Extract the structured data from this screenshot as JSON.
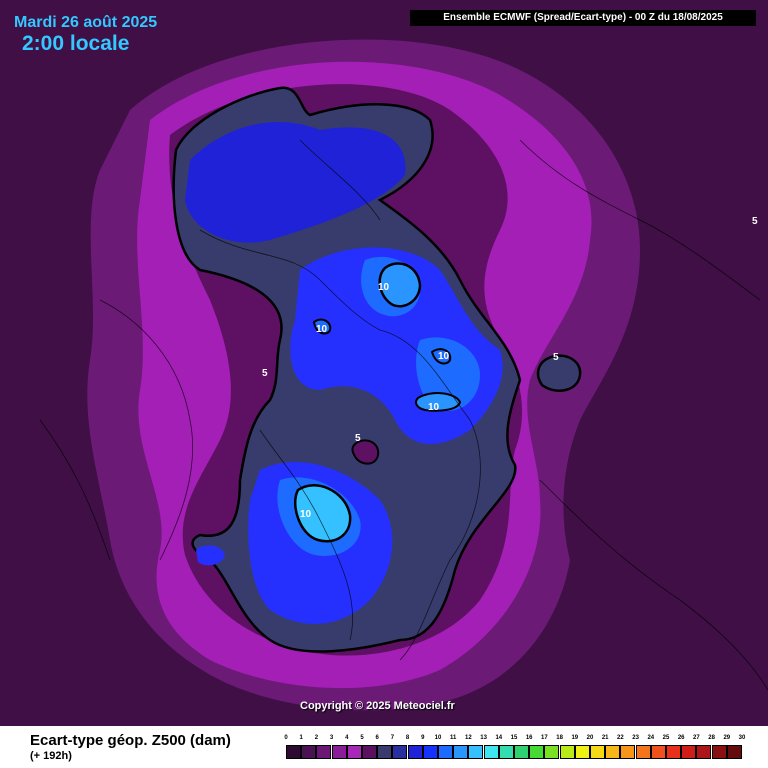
{
  "header": {
    "date": "Mardi 26 août 2025",
    "local_time": "2:00 locale",
    "model_run": "Ensemble ECMWF  (Spread/Ecart-type) - 00 Z du 18/08/2025"
  },
  "map": {
    "copyright": "Copyright © 2025 Meteociel.fr",
    "contour_labels": [
      {
        "id": "c10-a",
        "text": "10"
      },
      {
        "id": "c10-b",
        "text": "10"
      },
      {
        "id": "c10-c",
        "text": "10"
      },
      {
        "id": "c10-d",
        "text": "10"
      },
      {
        "id": "c10-e",
        "text": "10"
      },
      {
        "id": "c5-a",
        "text": "5"
      },
      {
        "id": "c5-b",
        "text": "5"
      },
      {
        "id": "c5-c",
        "text": "5"
      },
      {
        "id": "c5-d",
        "text": "5"
      }
    ]
  },
  "legend": {
    "variable": "Ecart-type géop. Z500 (dam)",
    "lead_time": "(+ 192h)",
    "scale_values": [
      "0",
      "1",
      "2",
      "3",
      "4",
      "5",
      "6",
      "7",
      "8",
      "9",
      "10",
      "11",
      "12",
      "13",
      "14",
      "15",
      "16",
      "17",
      "18",
      "19",
      "20",
      "21",
      "22",
      "23",
      "24",
      "25",
      "26",
      "27",
      "28",
      "29",
      "30"
    ],
    "scale_colors": [
      "#2e0a33",
      "#4b1253",
      "#6a1776",
      "#8b1c9a",
      "#a826b8",
      "#5c1060",
      "#3a3a6e",
      "#2a2fa0",
      "#1f22d6",
      "#1533ff",
      "#1e6bff",
      "#2a95ff",
      "#35c1ff",
      "#3fe5f0",
      "#33ddb0",
      "#2fd070",
      "#45d933",
      "#7be022",
      "#b6ea18",
      "#eef016",
      "#f6d817",
      "#f7b717",
      "#f7951a",
      "#f5741c",
      "#f0521d",
      "#e8301c",
      "#cf1e1a",
      "#ad1616",
      "#8a1010",
      "#660b0b",
      "#3a0505"
    ]
  }
}
